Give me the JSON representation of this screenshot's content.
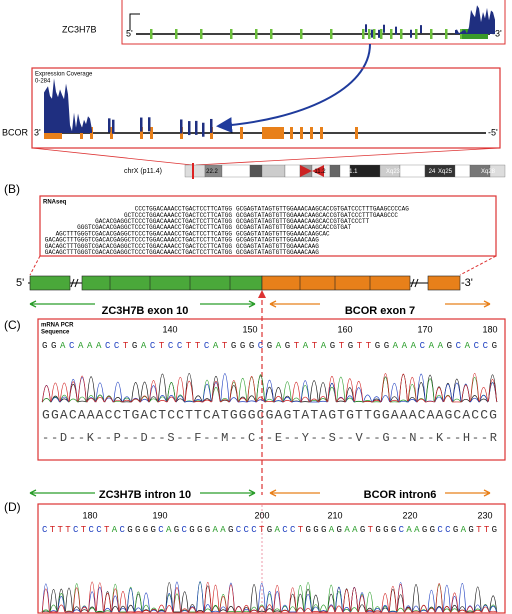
{
  "panel_a": {
    "top_gene": "ZC3H7B",
    "top_5": "5'",
    "top_3": "-3'",
    "coverage_title": "Expression Coverage",
    "coverage_range": "0-284",
    "bottom_gene": "BCOR",
    "bottom_3": "3'",
    "bottom_5": "-5'",
    "chromosome": "chrX (p11.4)",
    "bands": [
      "22.2",
      "11.2",
      "p21.1",
      "Xq23",
      "24",
      "Xq25",
      "Xq28"
    ]
  },
  "panel_b": {
    "label": "(B)",
    "box_title": "RNAseq",
    "reads": [
      {
        "left": "CCCTGGACAAACCTGACTCCTTCATGG",
        "right": "GCGAGTATAGTGTTGGAAACAAGCACCGTGATCCCTTTGAAGCCCCAG"
      },
      {
        "left": "GCTCCCTGGACAAACCTGACTCCTTCATGG",
        "right": "GCGAGTATAGTGTTGGAAACAAGCACCGTGATCCCTTTGAAGCCC"
      },
      {
        "left": "GACACGAGGCTCCCTGGACAAACCTGACTCCTTCATGG",
        "right": "GCGAGTATAGTGTTGGAAACAAGCACCGTGATCCCTT"
      },
      {
        "left": "GGGTCGACACGAGGCTCCCTGGACAAACCTGACTCCTTCATGG",
        "right": "GCGAGTATAGTGTTGGAAACAAGCACCGTGAT"
      },
      {
        "left": "AGCTTTGGGTCGACACGAGGCTCCCTGGACAAACCTGACTCCTTCATGG",
        "right": "GCGAGTATAGTGTTGGAAACAAGCAC"
      },
      {
        "left": "GACAGCTTTGGGTCGACACGAGGCTCCCTGGACAAACCTGACTCCTTCATGG",
        "right": "GCGAGTATAGTGTTGGAAACAAG"
      },
      {
        "left": "GACAGCTTTGGGTCGACACGAGGCTCCCTGGACAAACCTGACTCCTTCATGG",
        "right": "GCGAGTATAGTGTTGGAAACAAG"
      },
      {
        "left": "GACAGCTTTGGGTCGACACGAGGCTCCCTGGACAAACCTGACTCCTTCATGG",
        "right": "GCGAGTATAGTGTTGGAAACAAG"
      }
    ],
    "five": "5'",
    "three": "-3'"
  },
  "panel_c": {
    "label": "(C)",
    "left_region": "ZC3H7B exon 10",
    "right_region": "BCOR exon 7",
    "trace_title": [
      "mRNA PCR",
      "Sequence"
    ],
    "positions": [
      140,
      150,
      160,
      170,
      180
    ],
    "bases": "GGACAAACCTGACTCCTTCATGGGCGAGTATAGTGTTGGAAACAAGCACCG",
    "sequence": "GGACAAACCTGACTCCTTCATGGGCGAGTATAGTGTTGGAAACAAGCACCG",
    "protein": "--D--K--P--D--S--F--M--C--E--Y--S--V--G--N--K--H--R"
  },
  "panel_d": {
    "label": "(D)",
    "left_region": "ZC3H7B intron 10",
    "right_region": "BCOR intron6",
    "positions": [
      180,
      190,
      200,
      210,
      220,
      230
    ],
    "bases": "CTTTCTCCTACGGGGCAGCGGGAAGCCCTGACCTGGGAGAAGTGGGCAAGGCCGAGTTG"
  }
}
